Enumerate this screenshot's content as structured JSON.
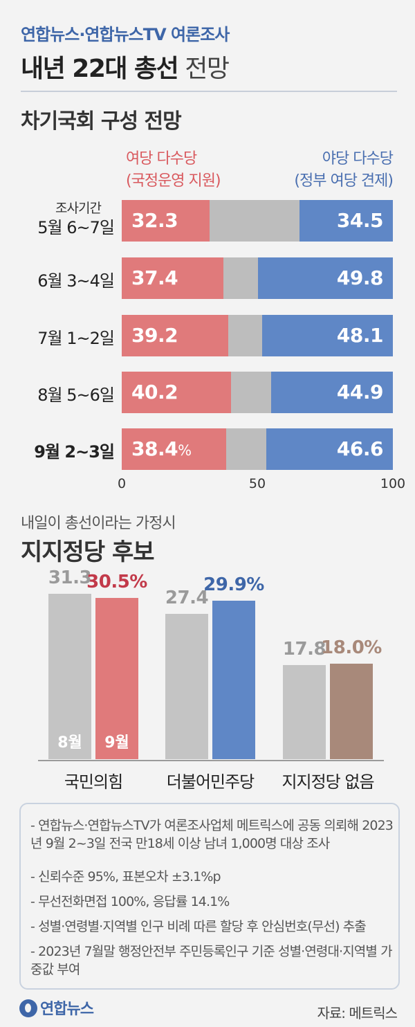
{
  "header": {
    "source_line": "연합뉴스·연합뉴스TV 여론조사",
    "title_bold": "내년 22대 총선",
    "title_light": "전망"
  },
  "section1": {
    "title": "차기국회 구성 전망",
    "left_label_1": "여당 다수당",
    "left_label_2": "(국정운영 지원)",
    "right_label_1": "야당 다수당",
    "right_label_2": "(정부 여당 견제)",
    "period_caption": "조사기간"
  },
  "section2": {
    "subtitle": "내일이 총선이라는 가정시",
    "title": "지지정당 후보",
    "month_labels": [
      "8월",
      "9월"
    ]
  },
  "chart_data": [
    {
      "type": "bar",
      "orientation": "horizontal",
      "stacked": true,
      "categories": [
        "5월 6~7일",
        "6월 3~4일",
        "7월 1~2일",
        "8월 5~6일",
        "9월 2~3일"
      ],
      "series": [
        {
          "name": "여당 다수당 (국정운영 지원)",
          "values": [
            32.3,
            37.4,
            39.2,
            40.2,
            38.4
          ],
          "color": "#e07a7b"
        },
        {
          "values": [
            33.2,
            12.8,
            12.7,
            14.9,
            15.0
          ],
          "color": "#bdbdbd"
        },
        {
          "name": "야당 다수당 (정부 여당 견제)",
          "values": [
            34.5,
            49.8,
            48.1,
            44.9,
            46.6
          ],
          "color": "#5f87c6"
        }
      ],
      "value_labels": [
        [
          "32.3",
          "34.5"
        ],
        [
          "37.4",
          "49.8"
        ],
        [
          "39.2",
          "48.1"
        ],
        [
          "40.2",
          "44.9"
        ],
        [
          "38.4",
          "46.6"
        ]
      ],
      "unit": "%",
      "xlim": [
        0,
        100
      ],
      "xticks": [
        "0",
        "50",
        "100"
      ]
    },
    {
      "type": "bar",
      "orientation": "vertical",
      "categories": [
        "국민의힘",
        "더불어민주당",
        "지지정당 없음"
      ],
      "series": [
        {
          "name": "8월",
          "values": [
            31.3,
            27.4,
            17.8
          ],
          "color": "#c4c4c4"
        },
        {
          "name": "9월",
          "values": [
            30.5,
            29.9,
            18.0
          ],
          "colors": [
            "#e07a7b",
            "#5f87c6",
            "#a8897a"
          ]
        }
      ],
      "value_labels": [
        [
          "31.3",
          "27.4",
          "17.8"
        ],
        [
          "30.5%",
          "29.9%",
          "18.0%"
        ]
      ],
      "label_colors_9": [
        "#c23a4a",
        "#3e66a8",
        "#a8897a"
      ],
      "label_color_8": "#9a9a9a",
      "ylim": [
        0,
        36
      ]
    }
  ],
  "notes": [
    "- 연합뉴스·연합뉴스TV가 여론조사업체 메트릭스에 공동 의뢰해 2023년 9월 2~3일 전국 만18세 이상 남녀 1,000명 대상 조사",
    "- 신뢰수준 95%, 표본오차 ±3.1%p",
    "- 무선전화면접 100%, 응답률 14.1%",
    "- 성별·연령별·지역별 인구 비례 따른 할당 후 안심번호(무선) 추출",
    "- 2023년 7월말 행정안전부 주민등록인구 기준 성별·연령대·지역별 가중값 부여"
  ],
  "footer": {
    "logo": "연합뉴스",
    "credit": "자료: 메트릭스"
  }
}
